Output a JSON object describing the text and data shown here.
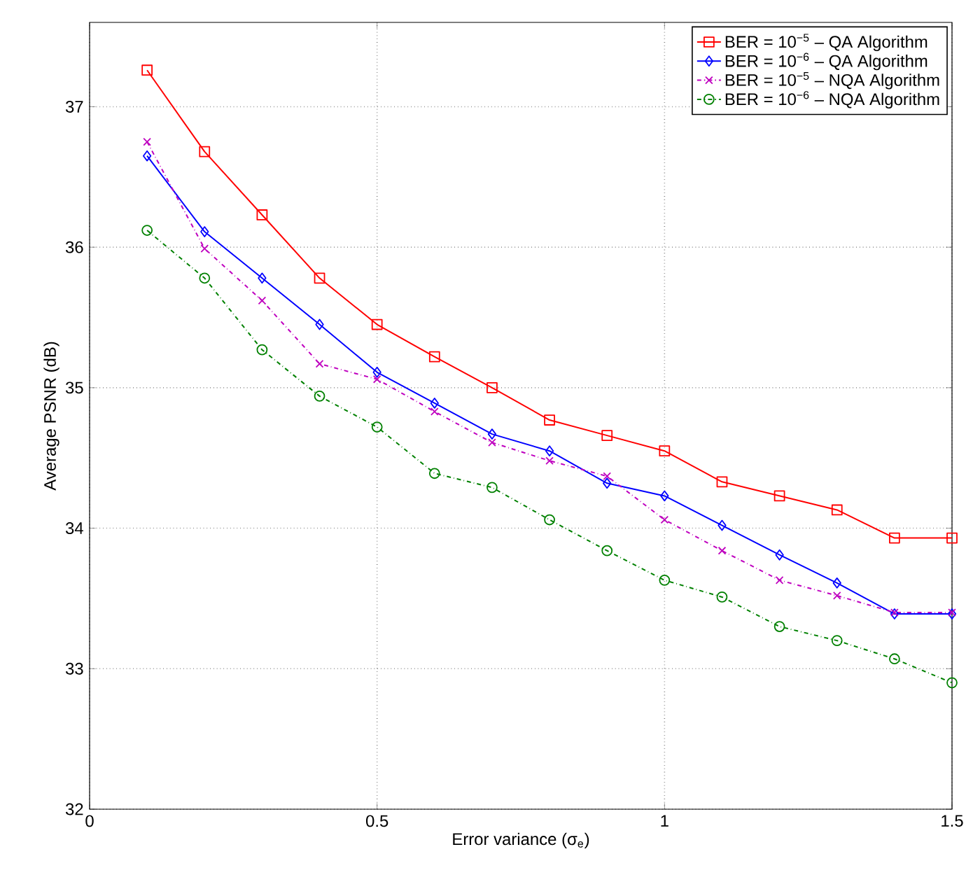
{
  "chart_data": {
    "type": "line",
    "xlabel": "Error variance (σ$_{e}$)",
    "ylabel": "Average PSNR (dB)",
    "x": [
      0.1,
      0.2,
      0.3,
      0.4,
      0.5,
      0.6,
      0.7,
      0.8,
      0.9,
      1.0,
      1.1,
      1.2,
      1.3,
      1.4,
      1.5
    ],
    "series": [
      {
        "name": "BER = 10$^{−5}$ – QA Algorithm",
        "color": "#ff0000",
        "marker": "square",
        "line_style": "solid",
        "values": [
          37.26,
          36.68,
          36.23,
          35.78,
          35.45,
          35.22,
          35.0,
          34.77,
          34.66,
          34.55,
          34.33,
          34.23,
          34.13,
          33.93,
          33.93
        ]
      },
      {
        "name": "BER = 10$^{−6}$ – QA Algorithm",
        "color": "#0000ff",
        "marker": "diamond",
        "line_style": "solid",
        "values": [
          36.65,
          36.11,
          35.78,
          35.45,
          35.11,
          34.89,
          34.67,
          34.55,
          34.32,
          34.23,
          34.02,
          33.81,
          33.61,
          33.39,
          33.39
        ]
      },
      {
        "name": "BER = 10$^{−5}$ – NQA Algorithm",
        "color": "#bf00bf",
        "marker": "cross",
        "line_style": "dashdot",
        "values": [
          36.75,
          35.99,
          35.62,
          35.17,
          35.06,
          34.83,
          34.61,
          34.48,
          34.37,
          34.06,
          33.84,
          33.63,
          33.52,
          33.4,
          33.4
        ]
      },
      {
        "name": "BER = 10$^{−6}$ – NQA Algorithm",
        "color": "#008000",
        "marker": "circle",
        "line_style": "dashdot",
        "values": [
          36.12,
          35.78,
          35.27,
          34.94,
          34.72,
          34.39,
          34.29,
          34.06,
          33.84,
          33.63,
          33.51,
          33.3,
          33.2,
          33.07,
          32.9
        ]
      }
    ],
    "xlim": [
      0,
      1.5
    ],
    "xticks": [
      0,
      0.5,
      1,
      1.5
    ],
    "ylim": [
      32,
      37.6
    ],
    "yticks": [
      32,
      33,
      34,
      35,
      36,
      37
    ],
    "grid": true,
    "legend": "top right"
  }
}
